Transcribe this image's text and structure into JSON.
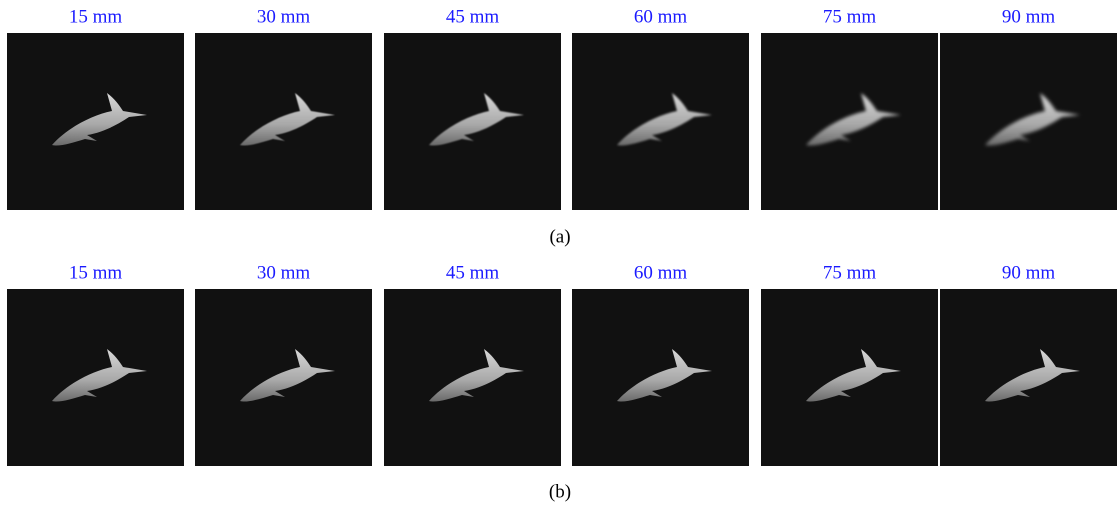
{
  "panels": [
    {
      "label": "(a)",
      "images": [
        {
          "caption": "15 mm"
        },
        {
          "caption": "30 mm"
        },
        {
          "caption": "45 mm"
        },
        {
          "caption": "60 mm"
        },
        {
          "caption": "75 mm"
        },
        {
          "caption": "90 mm"
        }
      ]
    },
    {
      "label": "(b)",
      "images": [
        {
          "caption": "15 mm"
        },
        {
          "caption": "30 mm"
        },
        {
          "caption": "45 mm"
        },
        {
          "caption": "60 mm"
        },
        {
          "caption": "75 mm"
        },
        {
          "caption": "90 mm"
        }
      ]
    }
  ]
}
